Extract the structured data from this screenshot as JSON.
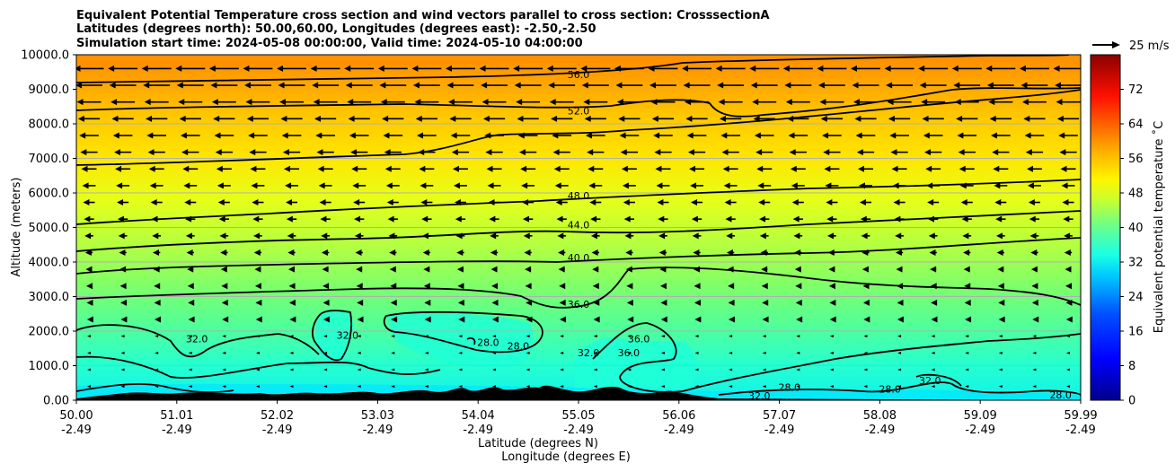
{
  "chart_data": {
    "type": "contour",
    "title_lines": [
      "Equivalent Potential Temperature cross section and wind vectors parallel to cross section: CrosssectionA",
      "Latitudes (degrees north): 50.00,60.00, Longitudes (degrees east): -2.50,-2.50",
      "Simulation start time: 2024-05-08 00:00:00, Valid time: 2024-05-10 04:00:00"
    ],
    "ylabel": "Altitude (meters)",
    "xlabel_lines": [
      "Latitude (degrees N)",
      "Longitude (degrees E)"
    ],
    "ylim": [
      0,
      10000
    ],
    "y_ticks": [
      "0.00",
      "1000.0",
      "2000.0",
      "3000.0",
      "4000.0",
      "5000.0",
      "6000.0",
      "7000.0",
      "8000.0",
      "9000.0",
      "10000.0"
    ],
    "x_ticks_lat": [
      "50.00",
      "51.01",
      "52.02",
      "53.03",
      "54.04",
      "55.05",
      "56.06",
      "57.07",
      "58.08",
      "59.09",
      "59.99"
    ],
    "x_ticks_lon": [
      "-2.49",
      "-2.49",
      "-2.49",
      "-2.49",
      "-2.49",
      "-2.49",
      "-2.49",
      "-2.49",
      "-2.49",
      "-2.49",
      "-2.49"
    ],
    "colorbar": {
      "label": "Equivalent potential temperature ˚C",
      "range": [
        0,
        80
      ],
      "ticks": [
        "0",
        "8",
        "16",
        "24",
        "32",
        "40",
        "48",
        "56",
        "64",
        "72"
      ]
    },
    "wind_key": {
      "label": "25 m/s",
      "speed": 25
    },
    "contour_levels": [
      28,
      32,
      36,
      40,
      44,
      48,
      52,
      56
    ],
    "contour_labels": [
      {
        "text": "56.0",
        "x": 0.5,
        "y": 9350
      },
      {
        "text": "52.0",
        "x": 0.5,
        "y": 8300
      },
      {
        "text": "48.0",
        "x": 0.5,
        "y": 5850
      },
      {
        "text": "44.0",
        "x": 0.5,
        "y": 5000
      },
      {
        "text": "40.0",
        "x": 0.5,
        "y": 4050
      },
      {
        "text": "36.0",
        "x": 0.5,
        "y": 2700
      },
      {
        "text": "36.0",
        "x": 0.55,
        "y": 1300
      },
      {
        "text": "32.0",
        "x": 0.12,
        "y": 1700
      },
      {
        "text": "32.0",
        "x": 0.27,
        "y": 1800
      },
      {
        "text": "28.0",
        "x": 0.41,
        "y": 1600
      },
      {
        "text": "28.0",
        "x": 0.44,
        "y": 1500
      },
      {
        "text": "36.0",
        "x": 0.56,
        "y": 1700
      },
      {
        "text": "32.0",
        "x": 0.51,
        "y": 1300
      },
      {
        "text": "28.0",
        "x": 0.71,
        "y": 300
      },
      {
        "text": "28.0",
        "x": 0.81,
        "y": 250
      },
      {
        "text": "28.0",
        "x": 0.98,
        "y": 80
      },
      {
        "text": "32.0",
        "x": 0.85,
        "y": 500
      },
      {
        "text": "32.0",
        "x": 0.68,
        "y": 50
      }
    ],
    "wind_dominant": "westward"
  }
}
